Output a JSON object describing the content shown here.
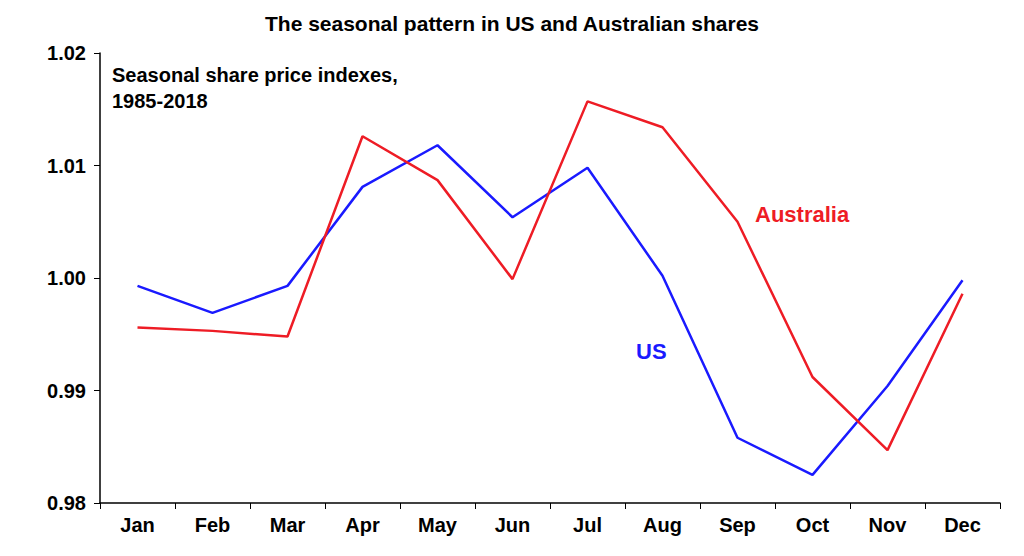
{
  "chart_data": {
    "type": "line",
    "title": "The seasonal pattern in US and Australian shares",
    "subtitle": "Seasonal share price indexes, 1985-2018",
    "categories": [
      "Jan",
      "Feb",
      "Mar",
      "Apr",
      "May",
      "Jun",
      "Jul",
      "Aug",
      "Sep",
      "Oct",
      "Nov",
      "Dec"
    ],
    "series": [
      {
        "name": "US",
        "color": "#1a1aff",
        "values": [
          0.9993,
          0.9969,
          0.9993,
          1.0081,
          1.0118,
          1.0054,
          1.0098,
          1.0002,
          0.9858,
          0.9825,
          0.9904,
          0.9998
        ]
      },
      {
        "name": "Australia",
        "color": "#ee1c25",
        "values": [
          0.9956,
          0.9953,
          0.9948,
          1.0126,
          1.0087,
          0.9999,
          1.0157,
          1.0134,
          1.005,
          0.9912,
          0.9847,
          0.9986
        ]
      }
    ],
    "ylim": [
      0.98,
      1.02
    ],
    "yticks": [
      0.98,
      0.99,
      {
        "value": 1,
        "label": "1.00"
      },
      1.01,
      1.02
    ],
    "grid": false
  }
}
